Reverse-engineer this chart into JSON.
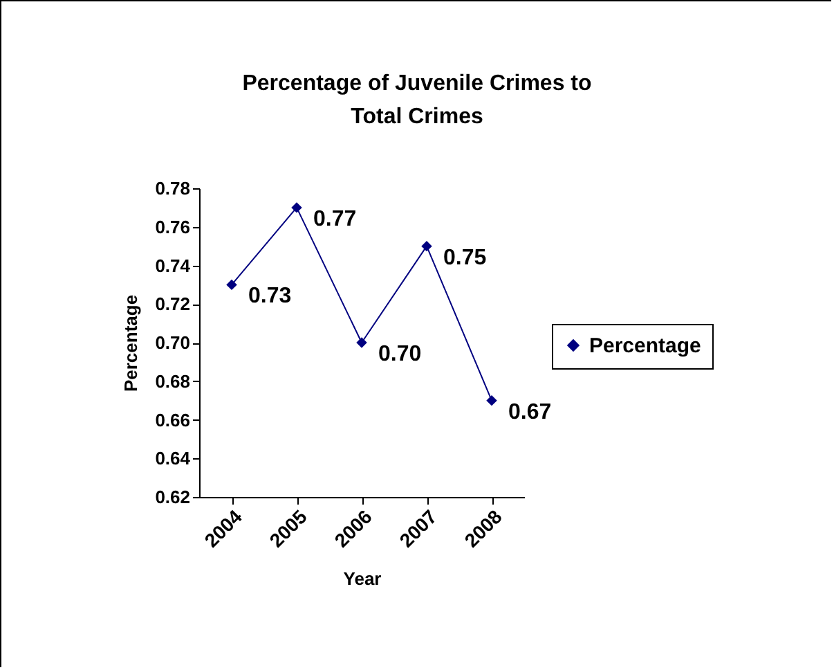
{
  "chart_data": {
    "type": "line",
    "title": "Percentage of Juvenile Crimes to Total Crimes",
    "xlabel": "Year",
    "ylabel": "Percentage",
    "categories": [
      "2004",
      "2005",
      "2006",
      "2007",
      "2008"
    ],
    "series": [
      {
        "name": "Percentage",
        "color": "#000080",
        "values": [
          0.73,
          0.77,
          0.7,
          0.75,
          0.67
        ],
        "value_labels": [
          "0.73",
          "0.77",
          "0.70",
          "0.75",
          "0.67"
        ]
      }
    ],
    "ylim": [
      0.62,
      0.78
    ],
    "yticks": [
      0.62,
      0.64,
      0.66,
      0.68,
      {
        "value": 0.7,
        "label": "0.70"
      },
      0.72,
      0.74,
      0.76,
      0.78
    ],
    "grid": false,
    "legend": "right",
    "marker": "diamond",
    "line_style": "solid"
  }
}
